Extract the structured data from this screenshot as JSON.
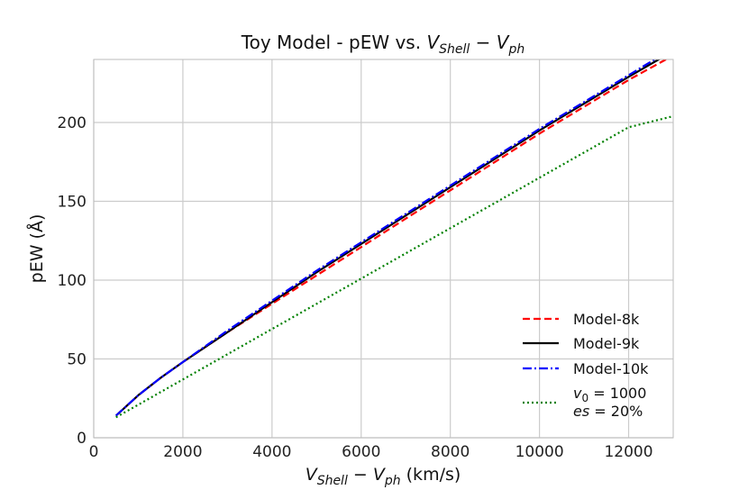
{
  "chart_data": {
    "type": "line",
    "title": {
      "prefix": "Toy Model - pEW vs. ",
      "v": "V",
      "shell_sub": "Shell",
      "minus": " − ",
      "ph_sub": "ph"
    },
    "xlabel": {
      "v": "V",
      "shell_sub": "Shell",
      "minus": " − ",
      "ph_sub": "ph",
      "suffix": " (km/s)"
    },
    "ylabel": "pEW (Å)",
    "xlim": [
      0,
      13000
    ],
    "ylim": [
      0,
      240
    ],
    "xticks": [
      0,
      2000,
      4000,
      6000,
      8000,
      10000,
      12000
    ],
    "yticks": [
      0,
      50,
      100,
      150,
      200
    ],
    "grid": true,
    "legend_position": "lower-right",
    "series": [
      {
        "name": "Model-8k",
        "color": "#ff0000",
        "dash": "dashed",
        "x": [
          500,
          1000,
          1500,
          2000,
          3000,
          4000,
          5000,
          6000,
          7000,
          8000,
          9000,
          10000,
          11000,
          12000,
          12900
        ],
        "y": [
          14,
          27,
          38,
          48,
          67,
          85,
          103,
          121,
          139,
          157,
          175,
          193,
          210,
          227,
          241
        ]
      },
      {
        "name": "Model-9k",
        "color": "#000000",
        "dash": "solid",
        "x": [
          500,
          1000,
          1500,
          2000,
          3000,
          4000,
          5000,
          6000,
          7000,
          8000,
          9000,
          10000,
          11000,
          12000,
          12800
        ],
        "y": [
          14,
          27,
          38,
          48,
          67,
          86,
          105,
          123,
          141,
          159,
          177,
          195,
          212,
          229,
          242
        ]
      },
      {
        "name": "Model-10k",
        "color": "#0000ff",
        "dash": "dashdot",
        "x": [
          500,
          1000,
          1500,
          2000,
          3000,
          4000,
          5000,
          6000,
          7000,
          8000,
          9000,
          10000,
          11000,
          12000,
          12700
        ],
        "y": [
          14,
          27,
          38,
          48,
          68,
          87,
          106,
          124,
          142,
          160,
          178,
          196,
          213,
          230,
          242
        ]
      },
      {
        "name_line1": "v",
        "name_line1_sub": "0",
        "name_line1_rest": " = 1000",
        "name_line2": "es",
        "name_line2_rest": " = 20%",
        "color": "#008000",
        "dash": "dotted",
        "x": [
          500,
          1000,
          2000,
          3000,
          4000,
          5000,
          6000,
          7000,
          8000,
          9000,
          10000,
          11000,
          12000,
          13000
        ],
        "y": [
          13,
          21,
          37,
          53,
          69,
          85,
          101,
          117,
          133,
          149,
          165,
          181,
          197,
          204
        ]
      }
    ]
  }
}
